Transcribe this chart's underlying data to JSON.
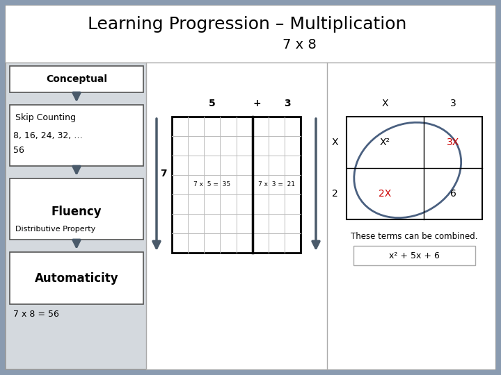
{
  "title": "Learning Progression – Multiplication",
  "subtitle": "7 x 8",
  "bg_outer": "#8a9bb0",
  "bg_inner": "#d4d9de",
  "bg_white": "#ffffff",
  "left_box_border": "#555555",
  "arrow_color": "#4a5a6a",
  "algebra_circle_color": "#4a6080",
  "algebra_red": "#cc0000",
  "combine_text": "These terms can be combined.",
  "formula_text": "x² + 5x + 6",
  "title_fontsize": 18,
  "subtitle_fontsize": 14
}
